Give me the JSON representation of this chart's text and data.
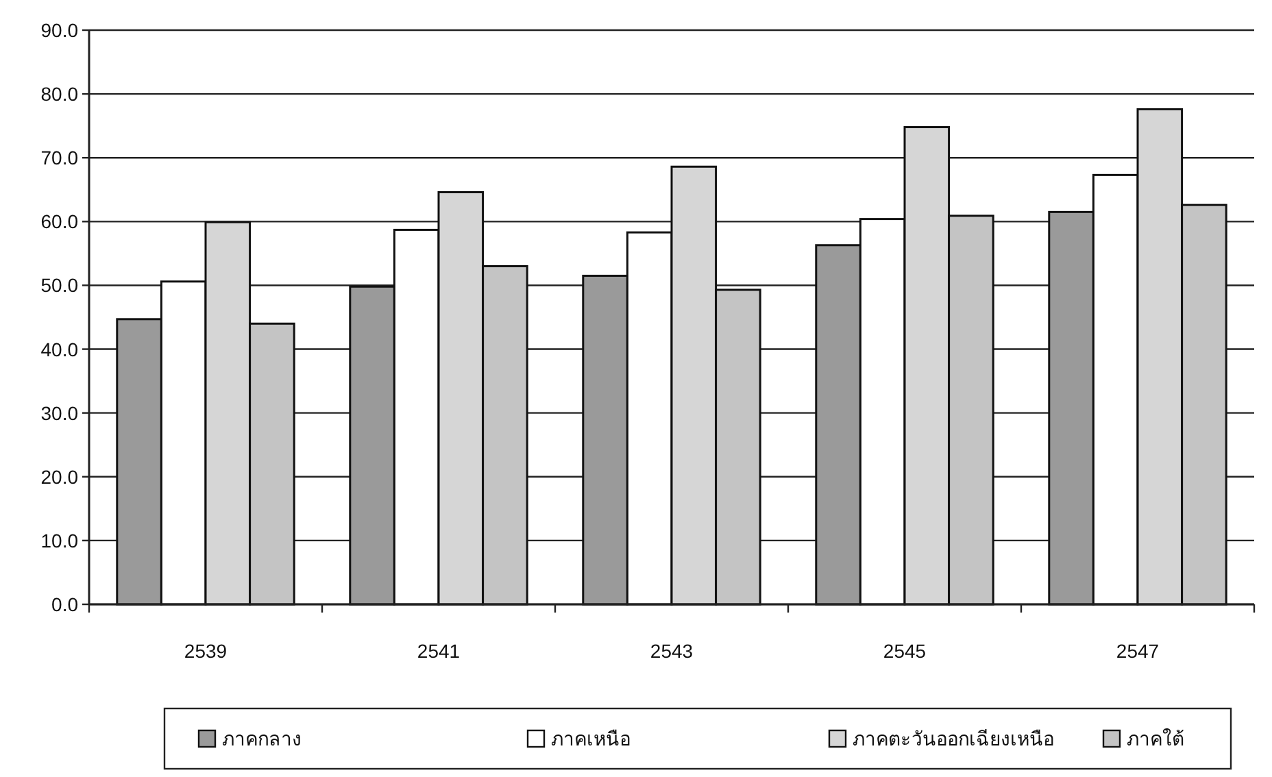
{
  "chart_data": {
    "type": "bar",
    "categories": [
      "2539",
      "2541",
      "2543",
      "2545",
      "2547"
    ],
    "series": [
      {
        "name": "ภาคกลาง",
        "color": "#9a9a9a",
        "values": [
          44.7,
          49.8,
          51.5,
          56.3,
          61.5
        ]
      },
      {
        "name": "ภาคเหนือ",
        "color": "#ffffff",
        "values": [
          50.6,
          58.7,
          58.3,
          60.4,
          67.3
        ]
      },
      {
        "name": "ภาคตะวันออกเฉียงเหนือ",
        "color": "#d6d6d6",
        "values": [
          59.9,
          64.6,
          68.6,
          74.8,
          77.6
        ]
      },
      {
        "name": "ภาคใต้",
        "color": "#c4c4c4",
        "values": [
          44.0,
          53.0,
          49.3,
          60.9,
          62.6
        ]
      }
    ],
    "ylim": [
      0,
      90
    ],
    "yticks": [
      {
        "value": 0,
        "label": "0.0"
      },
      {
        "value": 10,
        "label": "10.0"
      },
      {
        "value": 20,
        "label": "20.0"
      },
      {
        "value": 30,
        "label": "30.0"
      },
      {
        "value": 40,
        "label": "40.0"
      },
      {
        "value": 50,
        "label": "50.0"
      },
      {
        "value": 60,
        "label": "60.0"
      },
      {
        "value": 70,
        "label": "70.0"
      },
      {
        "value": 80,
        "label": "80.0"
      },
      {
        "value": 90,
        "label": "90.0"
      }
    ],
    "grid": "y",
    "legend": "bottom"
  }
}
